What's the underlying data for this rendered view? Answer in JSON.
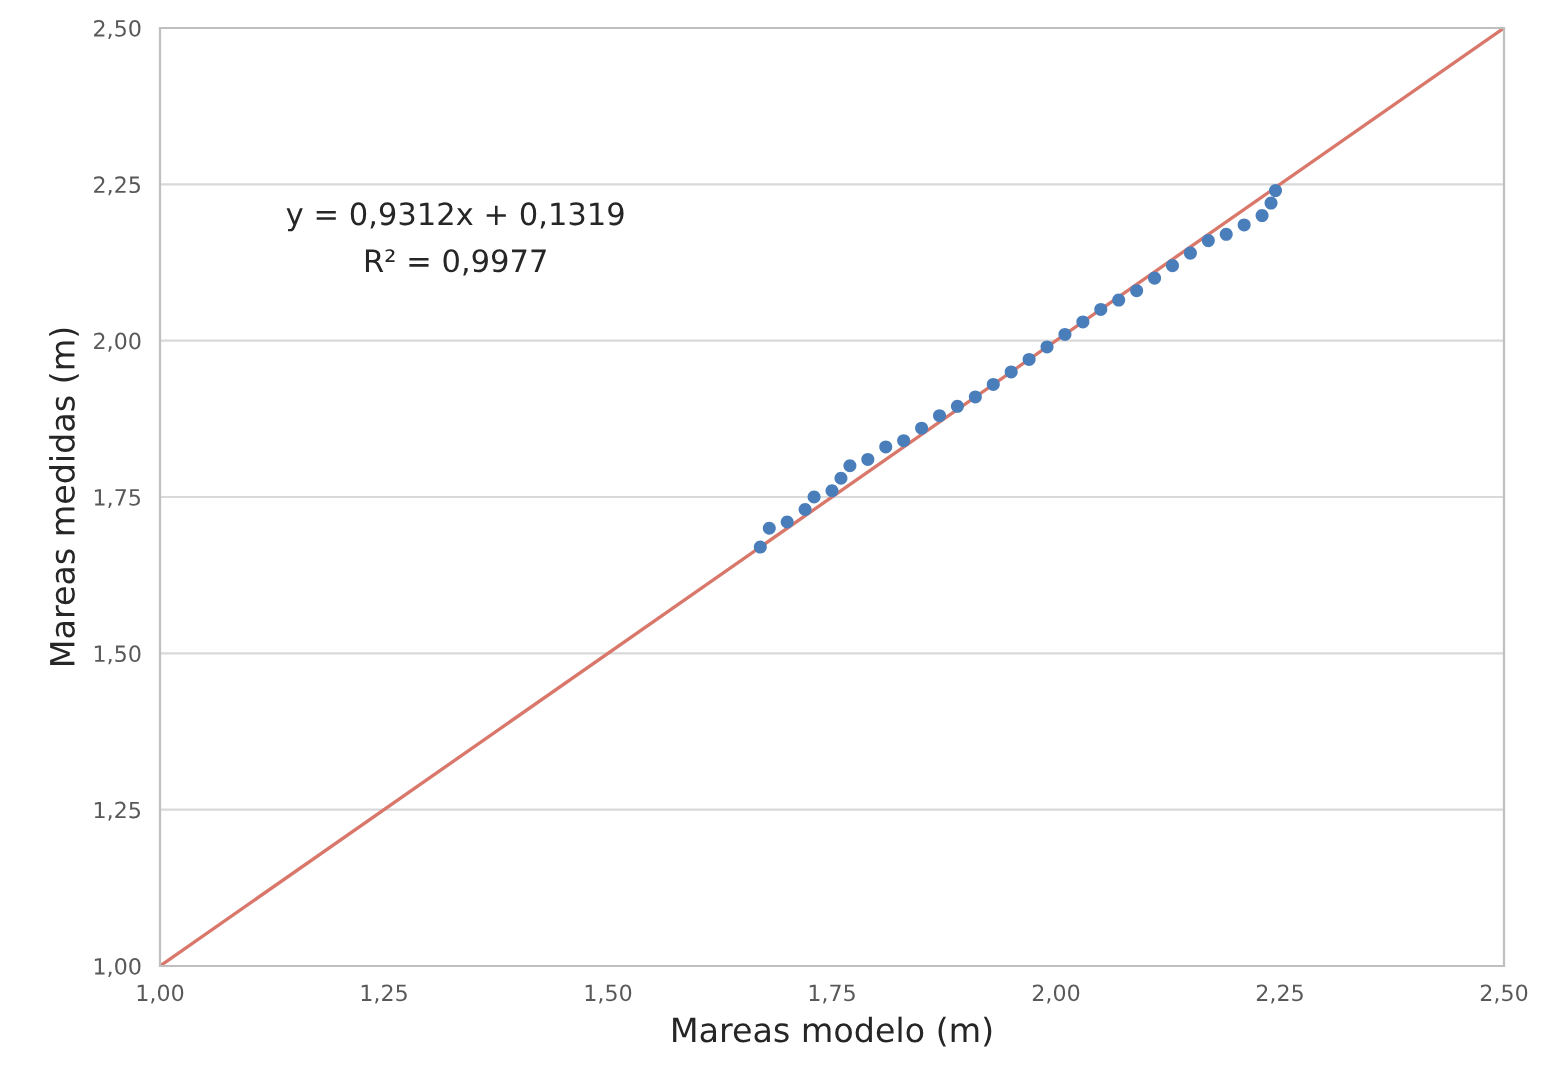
{
  "chart_data": {
    "type": "scatter",
    "xlabel": "Mareas modelo (m)",
    "ylabel": "Mareas medidas (m)",
    "xlim": [
      1.0,
      2.5
    ],
    "ylim": [
      1.0,
      2.5
    ],
    "xticks": [
      {
        "value": 1.0,
        "label": "1,00"
      },
      {
        "value": 1.25,
        "label": "1,25"
      },
      {
        "value": 1.5,
        "label": "1,50"
      },
      {
        "value": 1.75,
        "label": "1,75"
      },
      {
        "value": 2.0,
        "label": "2,00"
      },
      {
        "value": 2.25,
        "label": "2,25"
      },
      {
        "value": 2.5,
        "label": "2,50"
      }
    ],
    "yticks": [
      {
        "value": 1.0,
        "label": "1,00"
      },
      {
        "value": 1.25,
        "label": "1,25"
      },
      {
        "value": 1.5,
        "label": "1,50"
      },
      {
        "value": 1.75,
        "label": "1,75"
      },
      {
        "value": 2.0,
        "label": "2,00"
      },
      {
        "value": 2.25,
        "label": "2,25"
      },
      {
        "value": 2.5,
        "label": "2,50"
      }
    ],
    "grid": "y",
    "legend": false,
    "series": [
      {
        "color": "#4a7ebb",
        "marker": "circle",
        "x": [
          1.67,
          1.68,
          1.7,
          1.72,
          1.73,
          1.75,
          1.76,
          1.77,
          1.79,
          1.81,
          1.83,
          1.85,
          1.87,
          1.89,
          1.91,
          1.93,
          1.95,
          1.97,
          1.99,
          2.01,
          2.03,
          2.05,
          2.07,
          2.09,
          2.11,
          2.13,
          2.15,
          2.17,
          2.19,
          2.21,
          2.23,
          2.24,
          2.245
        ],
        "values": [
          1.67,
          1.7,
          1.71,
          1.73,
          1.75,
          1.76,
          1.78,
          1.8,
          1.81,
          1.83,
          1.84,
          1.86,
          1.88,
          1.895,
          1.91,
          1.93,
          1.95,
          1.97,
          1.99,
          2.01,
          2.03,
          2.05,
          2.065,
          2.08,
          2.1,
          2.12,
          2.14,
          2.16,
          2.17,
          2.185,
          2.2,
          2.22,
          2.24
        ]
      },
      {
        "type": "line",
        "color": "#d9776b",
        "line_style": "solid",
        "x": [
          1.0,
          2.5
        ],
        "values": [
          1.0,
          2.5
        ]
      }
    ],
    "annotations": [
      "y = 0,9312x + 0,1319",
      "R² = 0,9977"
    ]
  }
}
